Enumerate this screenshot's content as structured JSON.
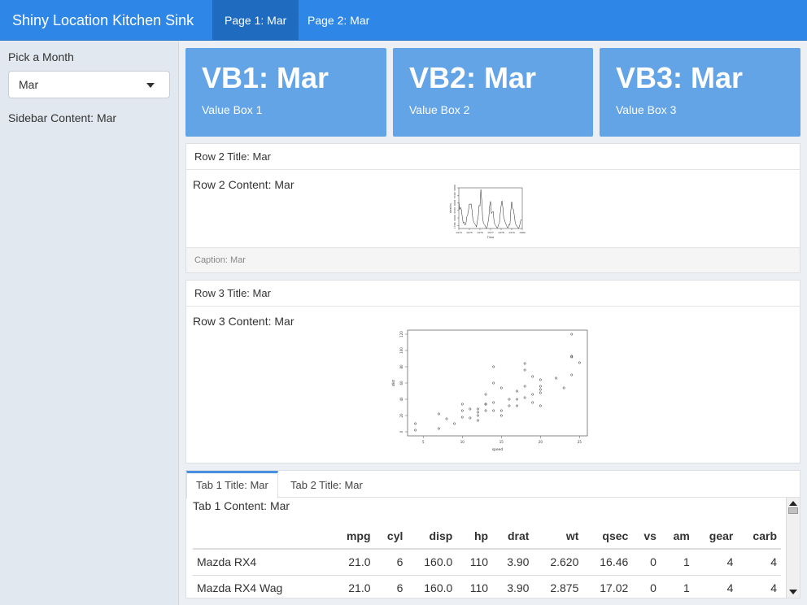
{
  "header": {
    "brand": "Shiny Location Kitchen Sink",
    "tabs": [
      {
        "label": "Page 1: Mar",
        "active": true
      },
      {
        "label": "Page 2: Mar",
        "active": false
      }
    ],
    "color": "#2e86e6"
  },
  "sidebar": {
    "select_label": "Pick a Month",
    "select_value": "Mar",
    "content": "Sidebar Content: Mar"
  },
  "value_boxes": [
    {
      "title": "VB1: Mar",
      "subtitle": "Value Box 1"
    },
    {
      "title": "VB2: Mar",
      "subtitle": "Value Box 2"
    },
    {
      "title": "VB3: Mar",
      "subtitle": "Value Box 3"
    }
  ],
  "row2": {
    "title": "Row 2 Title: Mar",
    "content": "Row 2 Content: Mar",
    "caption": "Caption: Mar"
  },
  "row3": {
    "title": "Row 3 Title: Mar",
    "content": "Row 3 Content: Mar"
  },
  "tabs_card": {
    "tabs": [
      {
        "label": "Tab 1 Title: Mar",
        "active": true
      },
      {
        "label": "Tab 2 Title: Mar",
        "active": false
      }
    ],
    "content": "Tab 1 Content: Mar",
    "table": {
      "columns": [
        "",
        "mpg",
        "cyl",
        "disp",
        "hp",
        "drat",
        "wt",
        "qsec",
        "vs",
        "am",
        "gear",
        "carb"
      ],
      "rows": [
        [
          "Mazda RX4",
          "21.0",
          "6",
          "160.0",
          "110",
          "3.90",
          "2.620",
          "16.46",
          "0",
          "1",
          "4",
          "4"
        ],
        [
          "Mazda RX4 Wag",
          "21.0",
          "6",
          "160.0",
          "110",
          "3.90",
          "2.875",
          "17.02",
          "0",
          "1",
          "4",
          "4"
        ]
      ]
    }
  },
  "chart_data": [
    {
      "type": "line",
      "xlabel": "Time",
      "ylabel": "deaths",
      "xlim": [
        1974,
        1980
      ],
      "ylim": [
        1300,
        4000
      ],
      "x_ticks": [
        "1974",
        "1975",
        "1976",
        "1977",
        "1978",
        "1979",
        "1980"
      ],
      "y_ticks": [
        "1500",
        "2000",
        "2500",
        "3000",
        "3500",
        "4000"
      ],
      "series": [
        {
          "values": [
            3035,
            2552,
            2704,
            2554,
            2014,
            1655,
            1721,
            1524,
            1596,
            2074,
            2199,
            2512,
            2933,
            2889,
            2938,
            2497,
            1870,
            1726,
            1607,
            1545,
            1396,
            1787,
            2076,
            2837,
            2787,
            3891,
            3179,
            2011,
            1636,
            1580,
            1489,
            1300,
            1356,
            1653,
            2013,
            2823,
            3102,
            2294,
            2385,
            2444,
            1748,
            1554,
            1498,
            1361,
            1346,
            1564,
            1640,
            2293,
            2815,
            3137,
            2679,
            1969,
            1870,
            1633,
            1529,
            1366,
            1357,
            1570,
            1535,
            2491,
            3084,
            2605,
            2573,
            2143,
            1693,
            1504,
            1461,
            1354,
            1333,
            1492,
            1781,
            1915
          ]
        }
      ]
    },
    {
      "type": "scatter",
      "xlabel": "speed",
      "ylabel": "dist",
      "xlim": [
        4,
        25
      ],
      "ylim": [
        2,
        120
      ],
      "x_ticks": [
        "5",
        "10",
        "15",
        "20",
        "25"
      ],
      "y_ticks": [
        "0",
        "20",
        "40",
        "60",
        "80",
        "100",
        "120"
      ],
      "points": [
        [
          4,
          2
        ],
        [
          4,
          10
        ],
        [
          7,
          4
        ],
        [
          7,
          22
        ],
        [
          8,
          16
        ],
        [
          9,
          10
        ],
        [
          10,
          18
        ],
        [
          10,
          26
        ],
        [
          10,
          34
        ],
        [
          11,
          17
        ],
        [
          11,
          28
        ],
        [
          12,
          14
        ],
        [
          12,
          20
        ],
        [
          12,
          24
        ],
        [
          12,
          28
        ],
        [
          13,
          26
        ],
        [
          13,
          34
        ],
        [
          13,
          34
        ],
        [
          13,
          46
        ],
        [
          14,
          26
        ],
        [
          14,
          36
        ],
        [
          14,
          60
        ],
        [
          14,
          80
        ],
        [
          15,
          20
        ],
        [
          15,
          26
        ],
        [
          15,
          54
        ],
        [
          16,
          32
        ],
        [
          16,
          40
        ],
        [
          17,
          32
        ],
        [
          17,
          40
        ],
        [
          17,
          50
        ],
        [
          18,
          42
        ],
        [
          18,
          56
        ],
        [
          18,
          76
        ],
        [
          18,
          84
        ],
        [
          19,
          36
        ],
        [
          19,
          46
        ],
        [
          19,
          68
        ],
        [
          20,
          32
        ],
        [
          20,
          48
        ],
        [
          20,
          52
        ],
        [
          20,
          56
        ],
        [
          20,
          64
        ],
        [
          22,
          66
        ],
        [
          23,
          54
        ],
        [
          24,
          70
        ],
        [
          24,
          92
        ],
        [
          24,
          93
        ],
        [
          24,
          120
        ],
        [
          25,
          85
        ]
      ]
    }
  ]
}
